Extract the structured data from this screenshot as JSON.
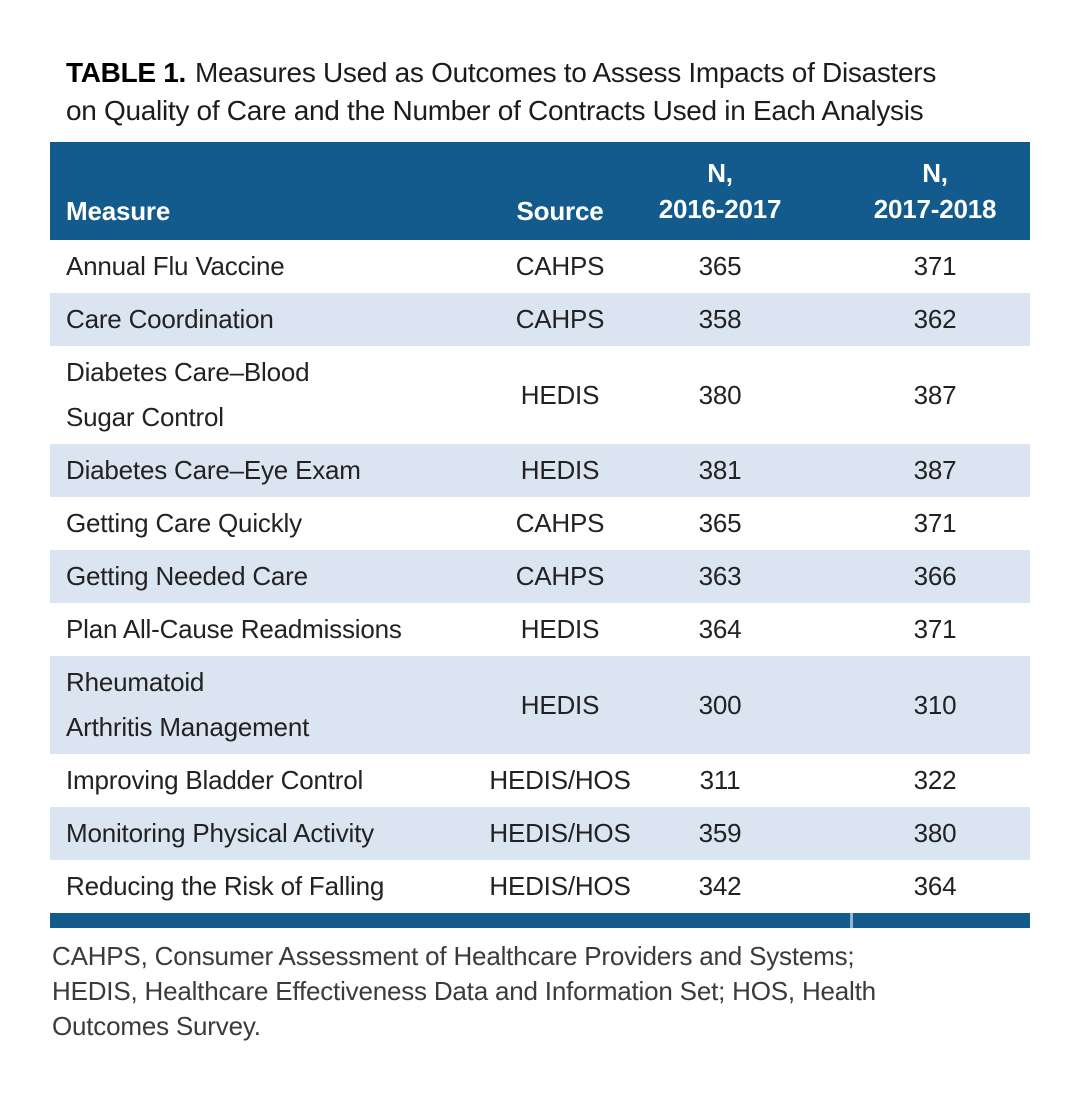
{
  "colors": {
    "header_bg": "#135a8d",
    "stripe_bg": "#dbe5f1",
    "bottom_bar": "#135a8d"
  },
  "title": {
    "label": "TABLE 1.",
    "line1_rest": "Measures Used as Outcomes to Assess Impacts of Disasters",
    "line2": "on Quality of Care and the Number of Contracts Used in Each Analysis"
  },
  "table": {
    "columns": [
      {
        "label": "Measure"
      },
      {
        "label": "Source"
      },
      {
        "line1": "N,",
        "line2": "2016-2017"
      },
      {
        "line1": "N,",
        "line2": "2017-2018"
      }
    ],
    "rows": [
      {
        "measure_lines": [
          "Annual Flu Vaccine"
        ],
        "source": "CAHPS",
        "n_2016_2017": "365",
        "n_2017_2018": "371"
      },
      {
        "measure_lines": [
          "Care Coordination"
        ],
        "source": "CAHPS",
        "n_2016_2017": "358",
        "n_2017_2018": "362"
      },
      {
        "measure_lines": [
          "Diabetes Care–Blood",
          "Sugar Control"
        ],
        "source": "HEDIS",
        "n_2016_2017": "380",
        "n_2017_2018": "387"
      },
      {
        "measure_lines": [
          "Diabetes Care–Eye Exam"
        ],
        "source": "HEDIS",
        "n_2016_2017": "381",
        "n_2017_2018": "387"
      },
      {
        "measure_lines": [
          "Getting Care Quickly"
        ],
        "source": "CAHPS",
        "n_2016_2017": "365",
        "n_2017_2018": "371"
      },
      {
        "measure_lines": [
          "Getting Needed Care"
        ],
        "source": "CAHPS",
        "n_2016_2017": "363",
        "n_2017_2018": "366"
      },
      {
        "measure_lines": [
          "Plan All-Cause Readmissions"
        ],
        "source": "HEDIS",
        "n_2016_2017": "364",
        "n_2017_2018": "371"
      },
      {
        "measure_lines": [
          "Rheumatoid",
          "Arthritis Management"
        ],
        "source": "HEDIS",
        "n_2016_2017": "300",
        "n_2017_2018": "310"
      },
      {
        "measure_lines": [
          "Improving Bladder Control"
        ],
        "source": "HEDIS/HOS",
        "n_2016_2017": "311",
        "n_2017_2018": "322"
      },
      {
        "measure_lines": [
          "Monitoring Physical Activity"
        ],
        "source": "HEDIS/HOS",
        "n_2016_2017": "359",
        "n_2017_2018": "380"
      },
      {
        "measure_lines": [
          "Reducing the Risk of Falling"
        ],
        "source": "HEDIS/HOS",
        "n_2016_2017": "342",
        "n_2017_2018": "364"
      }
    ]
  },
  "footnote": {
    "lines": [
      "CAHPS, Consumer Assessment of Healthcare Providers and Systems;",
      "HEDIS, Healthcare Effectiveness Data and Information Set; HOS, Health",
      "Outcomes Survey."
    ]
  }
}
